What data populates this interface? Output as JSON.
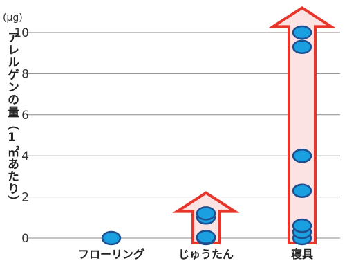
{
  "chart_data": {
    "type": "scatter",
    "ylabel": "アレルゲンの量（1㎡あたり）",
    "unit": "(μg)",
    "ylim": [
      0,
      10
    ],
    "yticks": [
      "0",
      "2",
      "4",
      "6",
      "8",
      "10"
    ],
    "categories": [
      "フローリング",
      "じゅうたん",
      "寝具"
    ],
    "series": [
      {
        "values": [
          {
            "category": "フローリング",
            "y": 0
          },
          {
            "category": "じゅうたん",
            "y": 0
          },
          {
            "category": "じゅうたん",
            "y": 0.05
          },
          {
            "category": "じゅうたん",
            "y": 1.0
          },
          {
            "category": "じゅうたん",
            "y": 1.2
          },
          {
            "category": "寝具",
            "y": 0
          },
          {
            "category": "寝具",
            "y": 0.3
          },
          {
            "category": "寝具",
            "y": 0.6
          },
          {
            "category": "寝具",
            "y": 2.3
          },
          {
            "category": "寝具",
            "y": 4.0
          },
          {
            "category": "寝具",
            "y": 9.3
          },
          {
            "category": "寝具",
            "y": 10.0
          }
        ]
      }
    ],
    "arrows": [
      {
        "category": "じゅうたん",
        "top": 2.2
      },
      {
        "category": "寝具",
        "top": 11.2
      }
    ],
    "grid": true,
    "colors": {
      "point_fill": "#1a9fe0",
      "point_stroke": "#1d4e8f",
      "arrow_stroke": "#e8352b",
      "arrow_fill": "#fbe3e3",
      "grid": "#888888"
    }
  }
}
